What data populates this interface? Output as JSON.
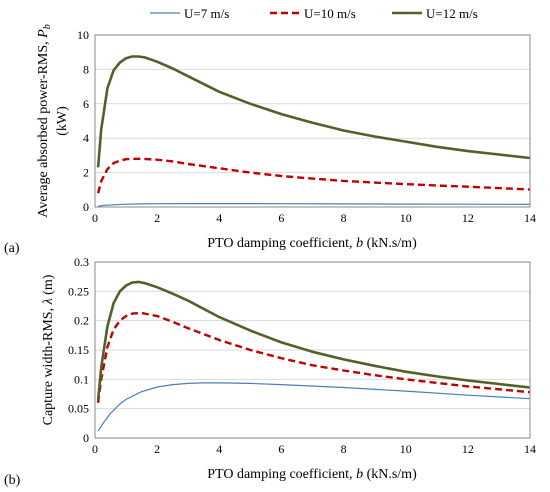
{
  "legend": {
    "placement": "top-center",
    "entries": [
      "U=7 m/s",
      "U=10 m/s",
      "U=12 m/s"
    ]
  },
  "styles": {
    "U7": {
      "color": "#4a7ebb",
      "dash": "solid"
    },
    "U10": {
      "color": "#c00000",
      "dash": "dashed"
    },
    "U12": {
      "color": "#4f6228",
      "dash": "solid"
    }
  },
  "chart_data": [
    {
      "panel_label": "(a)",
      "type": "line",
      "xlabel_main": "PTO damping coefficient, ",
      "xlabel_var": "b",
      "xlabel_unit": " (kN.s/m)",
      "ylabel_main": "Average absorbed power-RMS, ",
      "ylabel_var": "P",
      "ylabel_sub": "b",
      "ylabel_unit": "(kW)",
      "xlim": [
        0,
        14
      ],
      "ylim": [
        0,
        10
      ],
      "xticks": [
        "0",
        "2",
        "4",
        "6",
        "8",
        "10",
        "12",
        "14"
      ],
      "yticks": [
        "0",
        "2",
        "4",
        "6",
        "8",
        "10"
      ],
      "grid": "horizontal",
      "series": [
        {
          "name": "U=7 m/s",
          "x": [
            0.1,
            0.3,
            0.6,
            1,
            1.5,
            2,
            3,
            4,
            6,
            8,
            10,
            12,
            14
          ],
          "y": [
            0.05,
            0.1,
            0.13,
            0.16,
            0.18,
            0.19,
            0.2,
            0.2,
            0.19,
            0.18,
            0.17,
            0.16,
            0.15
          ]
        },
        {
          "name": "U=10 m/s",
          "x": [
            0.1,
            0.2,
            0.4,
            0.6,
            0.8,
            1,
            1.2,
            1.5,
            2,
            2.5,
            3,
            4,
            5,
            6,
            7,
            8,
            9,
            10,
            11,
            12,
            13,
            14
          ],
          "y": [
            0.8,
            1.5,
            2.2,
            2.55,
            2.7,
            2.78,
            2.8,
            2.8,
            2.75,
            2.65,
            2.5,
            2.25,
            2.0,
            1.8,
            1.65,
            1.52,
            1.42,
            1.33,
            1.25,
            1.18,
            1.1,
            1.02
          ]
        },
        {
          "name": "U=12 m/s",
          "x": [
            0.1,
            0.2,
            0.4,
            0.6,
            0.8,
            1,
            1.2,
            1.4,
            1.6,
            2,
            2.5,
            3,
            4,
            5,
            6,
            7,
            8,
            9,
            10,
            11,
            12,
            13,
            14
          ],
          "y": [
            2.3,
            4.5,
            6.9,
            7.95,
            8.4,
            8.65,
            8.75,
            8.75,
            8.7,
            8.45,
            8.05,
            7.6,
            6.7,
            6.0,
            5.4,
            4.9,
            4.45,
            4.1,
            3.8,
            3.5,
            3.25,
            3.05,
            2.85
          ]
        }
      ]
    },
    {
      "panel_label": "(b)",
      "type": "line",
      "xlabel_main": "PTO damping coefficient, ",
      "xlabel_var": "b",
      "xlabel_unit": " (kN.s/m)",
      "ylabel_main": "Capture width-RMS, ",
      "ylabel_var": "λ",
      "ylabel_sub": "",
      "ylabel_unit": " (m)",
      "xlim": [
        0,
        14
      ],
      "ylim": [
        0,
        0.3
      ],
      "xticks": [
        "0",
        "2",
        "4",
        "6",
        "8",
        "10",
        "12",
        "14"
      ],
      "yticks": [
        "0",
        "0.05",
        "0.1",
        "0.15",
        "0.2",
        "0.25",
        "0.3"
      ],
      "grid": "horizontal",
      "series": [
        {
          "name": "U=7 m/s",
          "x": [
            0.1,
            0.3,
            0.5,
            0.8,
            1,
            1.5,
            2,
            2.5,
            3,
            3.5,
            4,
            5,
            6,
            8,
            10,
            12,
            14
          ],
          "y": [
            0.012,
            0.028,
            0.042,
            0.058,
            0.066,
            0.079,
            0.087,
            0.091,
            0.093,
            0.094,
            0.094,
            0.093,
            0.091,
            0.086,
            0.08,
            0.073,
            0.067
          ]
        },
        {
          "name": "U=10 m/s",
          "x": [
            0.1,
            0.2,
            0.4,
            0.6,
            0.8,
            1,
            1.2,
            1.5,
            2,
            2.5,
            3,
            4,
            5,
            6,
            7,
            8,
            9,
            10,
            11,
            12,
            13,
            14
          ],
          "y": [
            0.06,
            0.1,
            0.155,
            0.185,
            0.2,
            0.208,
            0.212,
            0.213,
            0.208,
            0.198,
            0.187,
            0.167,
            0.15,
            0.136,
            0.124,
            0.115,
            0.107,
            0.1,
            0.094,
            0.088,
            0.083,
            0.078
          ]
        },
        {
          "name": "U=12 m/s",
          "x": [
            0.1,
            0.2,
            0.4,
            0.6,
            0.8,
            1,
            1.2,
            1.4,
            1.6,
            2,
            2.5,
            3,
            4,
            5,
            6,
            7,
            8,
            9,
            10,
            11,
            12,
            13,
            14
          ],
          "y": [
            0.065,
            0.12,
            0.19,
            0.23,
            0.25,
            0.26,
            0.265,
            0.266,
            0.264,
            0.257,
            0.246,
            0.234,
            0.206,
            0.183,
            0.163,
            0.147,
            0.134,
            0.123,
            0.113,
            0.105,
            0.098,
            0.092,
            0.086
          ]
        }
      ]
    }
  ]
}
